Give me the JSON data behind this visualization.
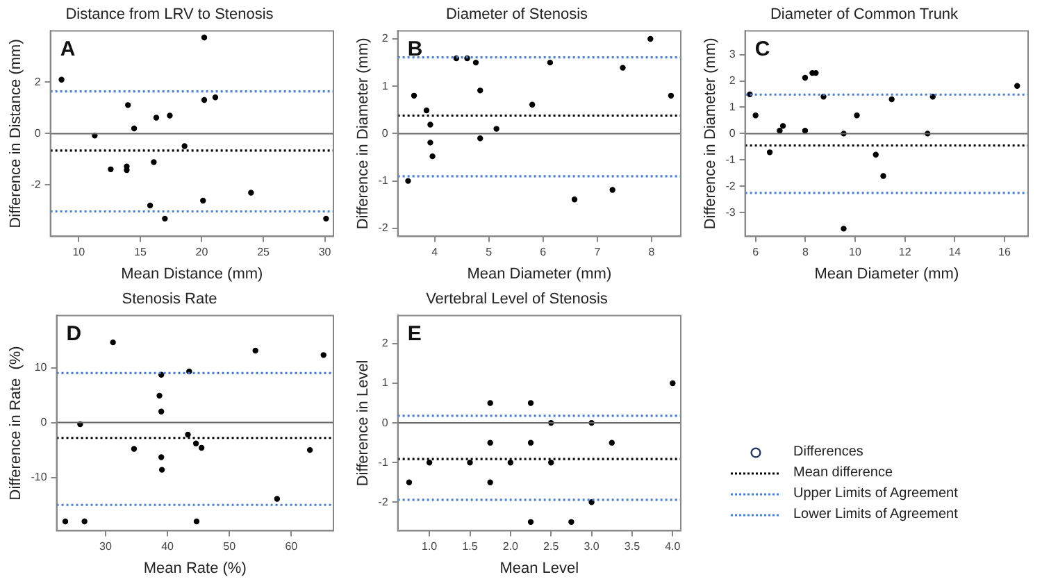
{
  "chart_data": [
    {
      "type": "scatter",
      "title": "Distance from LRV to Stenosis",
      "xlabel": "Mean Distance (mm)",
      "ylabel": "Difference in Distance (mm)",
      "annotations": [
        "A"
      ],
      "marker": "circle",
      "x": [
        8.6,
        20.2,
        11.3,
        14.0,
        14.5,
        12.6,
        13.9,
        13.9,
        16.3,
        17.4,
        20.2,
        21.1,
        18.6,
        16.1,
        15.8,
        17.0,
        20.1,
        24.0,
        30.1
      ],
      "series": [
        {
          "color": "#000000",
          "values": [
            2.1,
            3.74,
            -0.08,
            1.11,
            0.2,
            -1.39,
            -1.28,
            -1.42,
            0.62,
            0.7,
            1.31,
            1.41,
            -0.49,
            -1.11,
            -2.8,
            -3.31,
            -2.61,
            -2.3,
            -3.31
          ]
        }
      ],
      "xlim": [
        7.7,
        30.7
      ],
      "xticks": [
        10,
        15,
        20,
        25,
        30
      ],
      "ylim": [
        -4,
        4
      ],
      "yticks": [
        -2,
        0,
        2
      ],
      "ref_lines": [
        {
          "axis": "y",
          "value": 0,
          "color": "#666666",
          "line_style": "solid"
        },
        {
          "axis": "y",
          "value": -0.66,
          "color": "#000000",
          "line_style": "dotted"
        },
        {
          "axis": "y",
          "value": 1.64,
          "color": "#4a7fd6",
          "line_style": "dotted"
        },
        {
          "axis": "y",
          "value": -3.03,
          "color": "#4a7fd6",
          "line_style": "dotted"
        }
      ]
    },
    {
      "type": "scatter",
      "title": "Diameter of Stenosis",
      "xlabel": "Mean Diameter (mm)",
      "ylabel": "Difference in Diameter (mm)",
      "annotations": [
        "B"
      ],
      "marker": "circle",
      "x": [
        3.51,
        3.62,
        3.85,
        3.92,
        3.92,
        3.96,
        4.4,
        4.6,
        4.76,
        4.84,
        4.84,
        5.14,
        5.8,
        6.13,
        6.58,
        7.28,
        7.47,
        7.98,
        8.36
      ],
      "series": [
        {
          "color": "#000000",
          "values": [
            -1.0,
            0.8,
            0.49,
            0.19,
            -0.19,
            -0.48,
            1.59,
            1.59,
            1.5,
            0.91,
            -0.1,
            0.1,
            0.61,
            1.5,
            -1.39,
            -1.19,
            1.39,
            2.0,
            0.8
          ]
        }
      ],
      "xlim": [
        3.32,
        8.54
      ],
      "xticks": [
        4,
        5,
        6,
        7,
        8
      ],
      "ylim": [
        -2.17,
        2.17
      ],
      "yticks": [
        -2,
        -1,
        0,
        1,
        2
      ],
      "ref_lines": [
        {
          "axis": "y",
          "value": 0,
          "color": "#666666",
          "line_style": "solid"
        },
        {
          "axis": "y",
          "value": 0.38,
          "color": "#000000",
          "line_style": "dotted"
        },
        {
          "axis": "y",
          "value": 1.61,
          "color": "#4a7fd6",
          "line_style": "dotted"
        },
        {
          "axis": "y",
          "value": -0.9,
          "color": "#4a7fd6",
          "line_style": "dotted"
        }
      ]
    },
    {
      "type": "scatter",
      "title": "Diameter of Common Trunk",
      "xlabel": "Mean Diameter (mm)",
      "ylabel": "Difference in Diameter (mm)",
      "annotations": [
        "C"
      ],
      "marker": "circle",
      "x": [
        5.77,
        6.0,
        6.57,
        6.97,
        7.1,
        7.99,
        7.99,
        8.28,
        8.42,
        8.73,
        9.54,
        9.54,
        10.07,
        10.83,
        11.13,
        11.47,
        12.91,
        13.12,
        16.51
      ],
      "series": [
        {
          "color": "#000000",
          "values": [
            1.49,
            0.69,
            -0.71,
            0.11,
            0.29,
            2.12,
            0.11,
            2.3,
            2.3,
            1.4,
            0.0,
            -3.61,
            0.69,
            -0.8,
            -1.61,
            1.3,
            0.0,
            1.4,
            1.81
          ]
        }
      ],
      "xlim": [
        5.58,
        16.95
      ],
      "xticks": [
        6,
        8,
        10,
        12,
        14,
        16
      ],
      "ylim": [
        -3.9,
        3.9
      ],
      "yticks": [
        -3,
        -2,
        -1,
        0,
        1,
        2,
        3
      ],
      "ref_lines": [
        {
          "axis": "y",
          "value": 0,
          "color": "#666666",
          "line_style": "solid"
        },
        {
          "axis": "y",
          "value": -0.45,
          "color": "#000000",
          "line_style": "dotted"
        },
        {
          "axis": "y",
          "value": 1.48,
          "color": "#4a7fd6",
          "line_style": "dotted"
        },
        {
          "axis": "y",
          "value": -2.25,
          "color": "#4a7fd6",
          "line_style": "dotted"
        }
      ]
    },
    {
      "type": "scatter",
      "title": "Stenosis Rate",
      "xlabel": "Mean Rate (%)",
      "ylabel": "Difference in Rate  (%)",
      "annotations": [
        "D"
      ],
      "marker": "circle",
      "x": [
        23.5,
        25.9,
        26.6,
        31.2,
        34.6,
        38.7,
        39.0,
        39.0,
        39.0,
        39.1,
        43.3,
        43.5,
        44.6,
        44.7,
        45.5,
        54.2,
        57.7,
        63.0,
        65.2
      ],
      "series": [
        {
          "color": "#000000",
          "values": [
            -18.0,
            -0.3,
            -18.0,
            14.6,
            -4.8,
            4.9,
            8.7,
            2.0,
            -6.3,
            -8.6,
            -2.2,
            9.3,
            -3.8,
            -18.0,
            -4.6,
            13.1,
            -13.9,
            -5.0,
            12.3
          ]
        }
      ],
      "xlim": [
        22.1,
        66.8
      ],
      "xticks": [
        30,
        40,
        50,
        60
      ],
      "ylim": [
        -19.7,
        19.5
      ],
      "yticks": [
        -10,
        0,
        10
      ],
      "ref_lines": [
        {
          "axis": "y",
          "value": 0,
          "color": "#666666",
          "line_style": "solid"
        },
        {
          "axis": "y",
          "value": -2.8,
          "color": "#000000",
          "line_style": "dotted"
        },
        {
          "axis": "y",
          "value": 9.0,
          "color": "#4a7fd6",
          "line_style": "dotted"
        },
        {
          "axis": "y",
          "value": -15.0,
          "color": "#4a7fd6",
          "line_style": "dotted"
        }
      ]
    },
    {
      "type": "scatter",
      "title": "Vertebral Level of Stenosis",
      "xlabel": "Mean Level",
      "ylabel": "Difference in Level",
      "annotations": [
        "E"
      ],
      "marker": "circle",
      "x": [
        0.75,
        1.0,
        1.5,
        1.75,
        1.75,
        1.75,
        2.0,
        2.25,
        2.25,
        2.25,
        2.5,
        2.5,
        2.75,
        3.0,
        3.0,
        3.25,
        4.0
      ],
      "series": [
        {
          "color": "#000000",
          "values": [
            -1.5,
            -1.0,
            -1.0,
            0.5,
            -0.5,
            -1.5,
            -1.0,
            0.5,
            -0.5,
            -2.5,
            0.0,
            -1.0,
            -2.5,
            0.0,
            -2.0,
            -0.5,
            1.0
          ]
        }
      ],
      "xlim": [
        0.61,
        4.1
      ],
      "xticks": [
        {
          "value": 1,
          "label": "1.0"
        },
        {
          "value": 1.5,
          "label": "1.5"
        },
        {
          "value": 2,
          "label": "2.0"
        },
        {
          "value": 2.5,
          "label": "2.5"
        },
        {
          "value": 3,
          "label": "3.0"
        },
        {
          "value": 3.5,
          "label": "3.5"
        },
        {
          "value": 4,
          "label": "4.0"
        }
      ],
      "ylim": [
        -2.72,
        2.71
      ],
      "yticks": [
        -2,
        -1,
        0,
        1,
        2
      ],
      "ref_lines": [
        {
          "axis": "y",
          "value": 0,
          "color": "#666666",
          "line_style": "solid"
        },
        {
          "axis": "y",
          "value": -0.91,
          "color": "#000000",
          "line_style": "dotted"
        },
        {
          "axis": "y",
          "value": 0.18,
          "color": "#4a7fd6",
          "line_style": "dotted"
        },
        {
          "axis": "y",
          "value": -1.94,
          "color": "#4a7fd6",
          "line_style": "dotted"
        }
      ]
    },
    {
      "type": "other",
      "annotations": [
        "Differences",
        "Mean difference",
        "Upper Limits of Agreement",
        "Lower Limits of Agreement"
      ]
    }
  ]
}
